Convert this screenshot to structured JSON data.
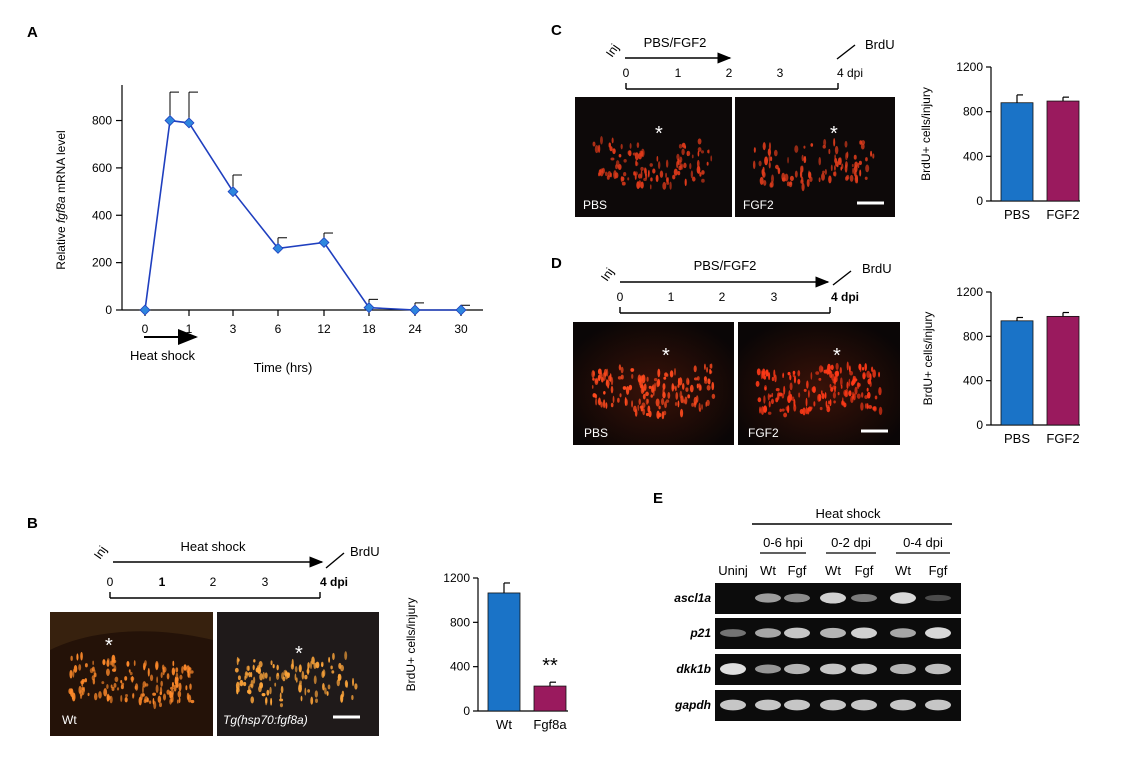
{
  "panel_labels": {
    "a": "A",
    "b": "B",
    "c": "C",
    "d": "D",
    "e": "E"
  },
  "colors": {
    "line": "#1f3fbf",
    "marker": "#2e86de",
    "bar_blue": "#1a73c7",
    "bar_purple": "#9a1a5e",
    "gel_bg": "#0c0c0c",
    "band": "#e8e8e8"
  },
  "panelA": {
    "ylabel_pre": "Relative ",
    "ylabel_gene": "fgf8a",
    "ylabel_post": " mRNA level",
    "xlabel": "Time  (hrs)",
    "arrow_label": "Heat shock"
  },
  "panelB": {
    "timeline": {
      "inj": "Inj",
      "treat": "Heat shock",
      "brdu": "BrdU",
      "ticks": [
        "0",
        "1",
        "2",
        "3",
        "4 dpi"
      ]
    },
    "images": [
      {
        "label": "Wt"
      },
      {
        "label": "Tg(hsp70:fgf8a)"
      }
    ],
    "star": "*",
    "significance": "**"
  },
  "panelC": {
    "timeline": {
      "inj": "Inj",
      "treat": "PBS/FGF2",
      "brdu": "BrdU",
      "ticks": [
        "0",
        "1",
        "2",
        "3",
        "4 dpi"
      ]
    },
    "images": [
      {
        "label": "PBS"
      },
      {
        "label": "FGF2"
      }
    ],
    "star": "*"
  },
  "panelD": {
    "timeline": {
      "inj": "Inj",
      "treat": "PBS/FGF2",
      "brdu": "BrdU",
      "ticks": [
        "0",
        "1",
        "2",
        "3",
        "4 dpi"
      ]
    },
    "images": [
      {
        "label": "PBS"
      },
      {
        "label": "FGF2"
      }
    ],
    "star": "*"
  },
  "panelE": {
    "header": "Heat shock",
    "groups": [
      "0-6 hpi",
      "0-2 dpi",
      "0-4 dpi"
    ],
    "lanes": [
      "Uninj",
      "Wt",
      "Fgf",
      "Wt",
      "Fgf",
      "Wt",
      "Fgf"
    ],
    "genes": [
      "ascl1a",
      "p21",
      "dkk1b",
      "gapdh"
    ],
    "band_intensity": [
      [
        0.0,
        0.55,
        0.45,
        0.85,
        0.35,
        0.9,
        0.05
      ],
      [
        0.3,
        0.6,
        0.8,
        0.7,
        0.85,
        0.6,
        0.9
      ],
      [
        0.95,
        0.5,
        0.7,
        0.8,
        0.8,
        0.7,
        0.75
      ],
      [
        0.8,
        0.8,
        0.8,
        0.8,
        0.8,
        0.8,
        0.8
      ]
    ]
  },
  "chart_data": [
    {
      "type": "line",
      "panel": "A",
      "title": "",
      "xlabel": "Time  (hrs)",
      "ylabel": "Relative fgf8a mRNA level",
      "x": [
        "0",
        "0.5",
        "1",
        "3",
        "6",
        "12",
        "18",
        "24",
        "30"
      ],
      "xticks": [
        "0",
        "1",
        "3",
        "6",
        "12",
        "18",
        "24",
        "30"
      ],
      "series": [
        {
          "values": [
            0,
            800,
            790,
            500,
            260,
            285,
            10,
            0,
            0
          ],
          "errors": [
            0,
            120,
            130,
            70,
            45,
            40,
            35,
            30,
            20
          ]
        }
      ],
      "yticks": [
        "0",
        "200",
        "400",
        "600",
        "800"
      ],
      "ylim": [
        0,
        950
      ]
    },
    {
      "type": "bar",
      "panel": "B",
      "ylabel": "BrdU+ cells/injury",
      "categories": [
        "Wt",
        "Fgf8a"
      ],
      "values": [
        1065,
        225
      ],
      "errors": [
        90,
        35
      ],
      "yticks": [
        "0",
        "400",
        "800",
        "1200"
      ],
      "ylim": [
        0,
        1200
      ]
    },
    {
      "type": "bar",
      "panel": "C",
      "ylabel": "BrdU+ cells/injury",
      "categories": [
        "PBS",
        "FGF2"
      ],
      "values": [
        880,
        895
      ],
      "errors": [
        70,
        35
      ],
      "yticks": [
        "0",
        "400",
        "800",
        "1200"
      ],
      "ylim": [
        0,
        1200
      ]
    },
    {
      "type": "bar",
      "panel": "D",
      "ylabel": "BrdU+ cells/injury",
      "categories": [
        "PBS",
        "FGF2"
      ],
      "values": [
        940,
        980
      ],
      "errors": [
        30,
        35
      ],
      "yticks": [
        "0",
        "400",
        "800",
        "1200"
      ],
      "ylim": [
        0,
        1200
      ]
    }
  ]
}
